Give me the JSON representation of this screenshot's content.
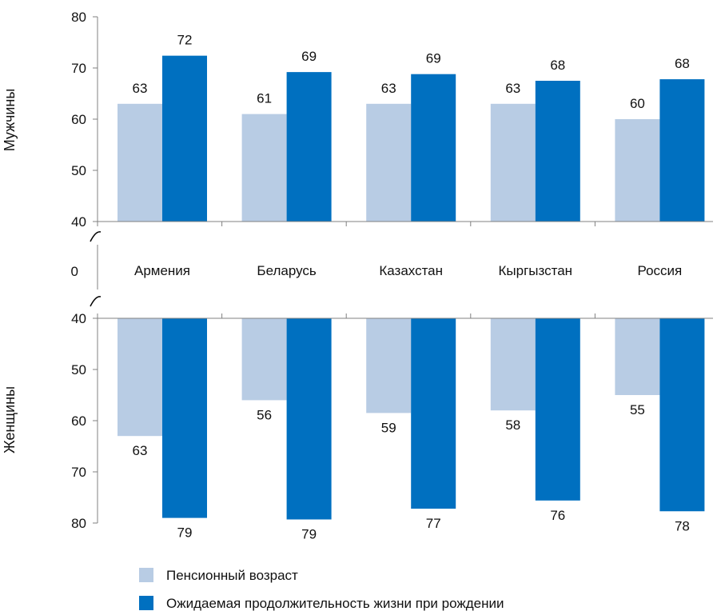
{
  "chart_data": [
    {
      "type": "bar",
      "panel": "top",
      "ylabel": "Мужчины",
      "ylim": [
        40,
        80
      ],
      "yticks": [
        40,
        50,
        60,
        70,
        80
      ],
      "categories": [
        "Армения",
        "Беларусь",
        "Казахстан",
        "Кыргызстан",
        "Россия"
      ],
      "series": [
        {
          "name": "Пенсионный возраст",
          "values": [
            63,
            61,
            63,
            63,
            60
          ],
          "labels": [
            "63",
            "61",
            "63",
            "63",
            "60"
          ]
        },
        {
          "name": "Ожидаемая продолжительность жизни при рождении",
          "values": [
            72.4,
            69.2,
            68.8,
            67.5,
            67.8
          ],
          "labels": [
            "72",
            "69",
            "69",
            "68",
            "68"
          ]
        }
      ]
    },
    {
      "type": "bar",
      "panel": "bottom",
      "ylabel": "Женщины",
      "ylim": [
        40,
        80
      ],
      "inverted": true,
      "yticks": [
        40,
        50,
        60,
        70,
        80
      ],
      "categories": [
        "Армения",
        "Беларусь",
        "Казахстан",
        "Кыргызстан",
        "Россия"
      ],
      "series": [
        {
          "name": "Пенсионный возраст",
          "values": [
            63,
            56,
            58.5,
            58,
            55
          ],
          "labels": [
            "63",
            "56",
            "59",
            "58",
            "55"
          ]
        },
        {
          "name": "Ожидаемая продолжительность жизни при рождении",
          "values": [
            79,
            79.3,
            77.2,
            75.6,
            77.7
          ],
          "labels": [
            "79",
            "79",
            "77",
            "76",
            "78"
          ]
        }
      ]
    }
  ],
  "axis_break_label": "0",
  "legend": {
    "placement": "bottom",
    "items": [
      {
        "label": "Пенсионный возраст",
        "color": "#b8cce4"
      },
      {
        "label": "Ожидаемая продолжительность жизни при рождении",
        "color": "#0070c0"
      }
    ]
  },
  "colors": {
    "pension": "#b8cce4",
    "life": "#0070c0",
    "axis": "#808080"
  }
}
